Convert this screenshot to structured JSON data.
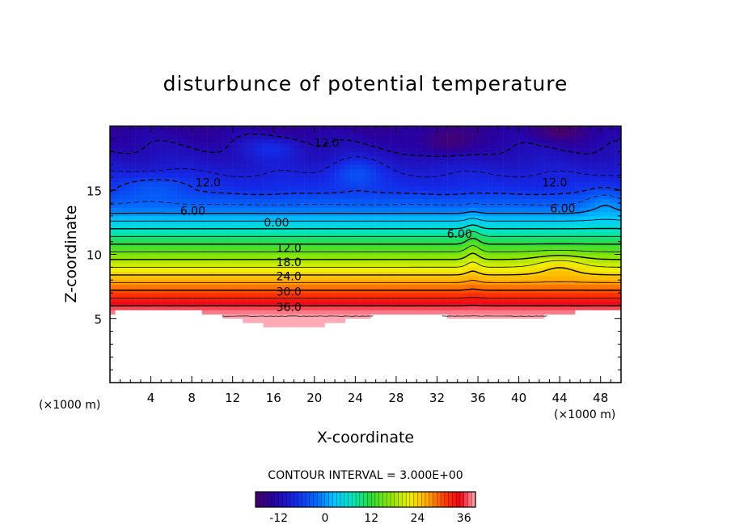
{
  "chart_data": {
    "type": "contour",
    "title": "disturbunce of potential temperature",
    "xlabel": "X-coordinate",
    "ylabel": "Z-coordinate",
    "x_unit": "(×1000 m)",
    "z_unit": "(×1000 m)",
    "xlim": [
      0,
      50
    ],
    "ylim": [
      0,
      20
    ],
    "x_ticks": [
      4,
      8,
      12,
      16,
      20,
      24,
      28,
      32,
      36,
      40,
      44,
      48
    ],
    "y_ticks": [
      5,
      10,
      15
    ],
    "contour_interval_text": "CONTOUR INTERVAL = 3.000E+00",
    "colorbar": {
      "range": [
        -18,
        39
      ],
      "ticks": [
        -12,
        0,
        12,
        24,
        36
      ],
      "tick_labels": [
        "-12",
        "0",
        "12",
        "24",
        "36"
      ]
    },
    "contour_labels": [
      {
        "text": "12.0",
        "x": 21.2,
        "z": 18.7
      },
      {
        "text": "12.0",
        "x": 9.6,
        "z": 15.6
      },
      {
        "text": "12.0",
        "x": 43.5,
        "z": 15.6
      },
      {
        "text": "6.00",
        "x": 8.1,
        "z": 13.4
      },
      {
        "text": "6.00",
        "x": 44.3,
        "z": 13.6
      },
      {
        "text": "0.00",
        "x": 16.3,
        "z": 12.5
      },
      {
        "text": "6.00",
        "x": 34.2,
        "z": 11.6
      },
      {
        "text": "12.0",
        "x": 17.5,
        "z": 10.5
      },
      {
        "text": "18.0",
        "x": 17.5,
        "z": 9.4
      },
      {
        "text": "24.0",
        "x": 17.5,
        "z": 8.3
      },
      {
        "text": "30.0",
        "x": 17.5,
        "z": 7.1
      },
      {
        "text": "36.0",
        "x": 17.5,
        "z": 5.9
      }
    ],
    "field": {
      "base_levels": [
        {
          "z": 5.2,
          "value": 39
        },
        {
          "z": 6.0,
          "value": 36
        },
        {
          "z": 7.0,
          "value": 31
        },
        {
          "z": 8.0,
          "value": 26
        },
        {
          "z": 9.0,
          "value": 21
        },
        {
          "z": 10.0,
          "value": 16
        },
        {
          "z": 11.0,
          "value": 11
        },
        {
          "z": 12.0,
          "value": 6
        },
        {
          "z": 12.8,
          "value": 2
        },
        {
          "z": 13.6,
          "value": -2
        },
        {
          "z": 15.0,
          "value": -7
        },
        {
          "z": 17.5,
          "value": -11
        },
        {
          "z": 20.0,
          "value": -14
        }
      ]
    }
  }
}
